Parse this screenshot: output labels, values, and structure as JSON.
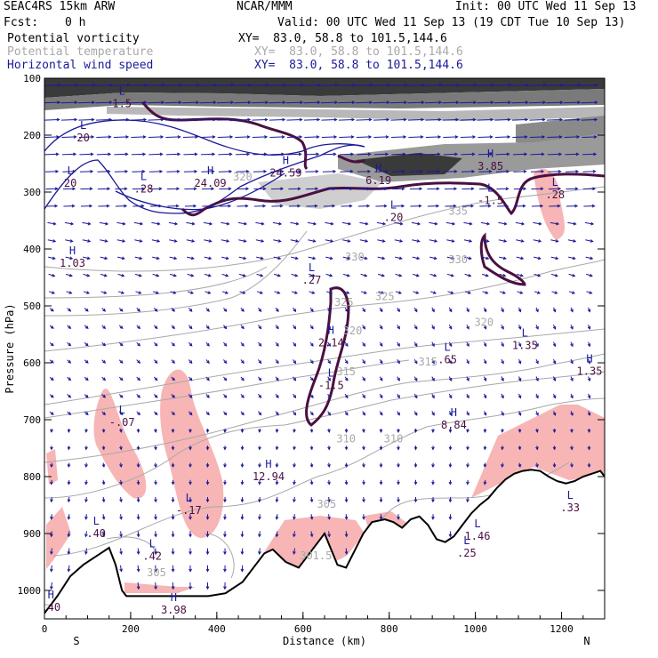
{
  "header": {
    "model": "SEAC4RS 15km ARW",
    "org": "NCAR/MMM",
    "init": "Init: 00 UTC Wed 11 Sep 13",
    "fcst_label": "Fcst:",
    "fcst_value": "0 h",
    "valid": "Valid: 00 UTC Wed 11 Sep 13 (19 CDT Tue 10 Sep 13)",
    "fields": [
      {
        "name": "Potential vorticity",
        "xy": "XY=  83.0, 58.8 to 101.5,144.6",
        "color": "#000000"
      },
      {
        "name": "Potential temperature",
        "xy": "XY=  83.0, 58.8 to 101.5,144.6",
        "color": "#a8a8a8"
      },
      {
        "name": "Horizontal wind speed",
        "xy": "XY=  83.0, 58.8 to 101.5,144.6",
        "color": "#1a1a9a"
      }
    ]
  },
  "chart_data": {
    "type": "cross-section",
    "xlabel": "Distance (km)",
    "ylabel": "Pressure (hPa)",
    "xlim": [
      0,
      1300
    ],
    "ylim": [
      1050,
      100
    ],
    "xticks": [
      "0",
      "200",
      "400",
      "600",
      "800",
      "1000",
      "1200"
    ],
    "yticks": [
      "100",
      "200",
      "300",
      "400",
      "500",
      "600",
      "700",
      "800",
      "900",
      "1000"
    ],
    "endpoints": {
      "left": "S",
      "right": "N"
    },
    "colors": {
      "pv_contour": "#4a1040",
      "theta": "#a8a8a8",
      "wind": "#1a1a9a",
      "shading": "#f7b5b5",
      "terrain": "#000000"
    },
    "terrain": [
      [
        0,
        1040
      ],
      [
        30,
        1010
      ],
      [
        60,
        975
      ],
      [
        90,
        955
      ],
      [
        120,
        940
      ],
      [
        150,
        925
      ],
      [
        165,
        955
      ],
      [
        180,
        1000
      ],
      [
        190,
        1010
      ],
      [
        380,
        1010
      ],
      [
        420,
        1005
      ],
      [
        460,
        985
      ],
      [
        490,
        955
      ],
      [
        510,
        935
      ],
      [
        530,
        928
      ],
      [
        560,
        950
      ],
      [
        590,
        960
      ],
      [
        620,
        930
      ],
      [
        650,
        900
      ],
      [
        680,
        955
      ],
      [
        700,
        960
      ],
      [
        720,
        930
      ],
      [
        740,
        900
      ],
      [
        760,
        880
      ],
      [
        790,
        875
      ],
      [
        810,
        880
      ],
      [
        830,
        890
      ],
      [
        850,
        875
      ],
      [
        870,
        870
      ],
      [
        890,
        885
      ],
      [
        910,
        910
      ],
      [
        930,
        915
      ],
      [
        950,
        905
      ],
      [
        970,
        885
      ],
      [
        990,
        865
      ],
      [
        1010,
        850
      ],
      [
        1030,
        838
      ],
      [
        1050,
        820
      ],
      [
        1070,
        805
      ],
      [
        1090,
        795
      ],
      [
        1110,
        790
      ],
      [
        1130,
        788
      ],
      [
        1150,
        790
      ],
      [
        1170,
        800
      ],
      [
        1190,
        808
      ],
      [
        1210,
        812
      ],
      [
        1230,
        808
      ],
      [
        1250,
        800
      ],
      [
        1270,
        795
      ],
      [
        1290,
        790
      ],
      [
        1300,
        800
      ]
    ],
    "pv_highs_lows": [
      {
        "type": "L",
        "value": "1.5",
        "x": 180,
        "p": 140
      },
      {
        "type": "L",
        "value": "20",
        "x": 90,
        "p": 200
      },
      {
        "type": "L",
        "value": "20",
        "x": 60,
        "p": 280
      },
      {
        "type": "L",
        "value": ".28",
        "x": 230,
        "p": 290
      },
      {
        "type": "H",
        "value": "24.09",
        "x": 385,
        "p": 280
      },
      {
        "type": "H",
        "value": "24.59",
        "x": 560,
        "p": 262
      },
      {
        "type": "H",
        "value": "6.19",
        "x": 775,
        "p": 275
      },
      {
        "type": "H",
        "value": "3.85",
        "x": 1035,
        "p": 250
      },
      {
        "type": "L",
        "value": ".28",
        "x": 1185,
        "p": 300
      },
      {
        "type": "L",
        "value": ".20",
        "x": 810,
        "p": 340
      },
      {
        "type": "L",
        "value": "-1.5",
        "x": 1035,
        "p": 310
      },
      {
        "type": "H",
        "value": "1.03",
        "x": 65,
        "p": 420
      },
      {
        "type": "L",
        "value": ".27",
        "x": 620,
        "p": 450
      },
      {
        "type": "H",
        "value": "2.14",
        "x": 665,
        "p": 560
      },
      {
        "type": "L",
        "value": "-1.5",
        "x": 665,
        "p": 635
      },
      {
        "type": "L",
        ".65": ".65",
        "value": ".65",
        "x": 935,
        "p": 590
      },
      {
        "type": "L",
        "value": "1.35",
        "x": 1115,
        "p": 565
      },
      {
        "type": "H",
        "value": "1.35",
        "x": 1265,
        "p": 610
      },
      {
        "type": "L",
        "value": "-.07",
        "x": 180,
        "p": 700
      },
      {
        "type": "H",
        "value": "8.84",
        "x": 950,
        "p": 705
      },
      {
        "type": "H",
        "value": "12.94",
        "x": 520,
        "p": 795
      },
      {
        "type": "L",
        "value": "-.17",
        "x": 335,
        "p": 855
      },
      {
        "type": "L",
        "value": ".40",
        "x": 120,
        "p": 895
      },
      {
        "type": "L",
        "value": ".42",
        "x": 250,
        "p": 935
      },
      {
        "type": "L",
        "value": "1.46",
        "x": 1005,
        "p": 900
      },
      {
        "type": "L",
        "value": ".25",
        "x": 980,
        "p": 930
      },
      {
        "type": "L",
        "value": ".33",
        "x": 1220,
        "p": 850
      },
      {
        "type": "H",
        "value": ".40",
        "x": 15,
        "p": 1025
      },
      {
        "type": "H",
        "value": "3.98",
        "x": 300,
        "p": 1030
      }
    ],
    "theta_labels": [
      {
        "value": "320",
        "x": 460,
        "p": 280
      },
      {
        "value": "335",
        "x": 960,
        "p": 340
      },
      {
        "value": "330",
        "x": 720,
        "p": 420
      },
      {
        "value": "330",
        "x": 960,
        "p": 425
      },
      {
        "value": "325",
        "x": 695,
        "p": 500
      },
      {
        "value": "325",
        "x": 790,
        "p": 490
      },
      {
        "value": "320",
        "x": 715,
        "p": 550
      },
      {
        "value": "320",
        "x": 1020,
        "p": 535
      },
      {
        "value": "315",
        "x": 700,
        "p": 622
      },
      {
        "value": "315",
        "x": 890,
        "p": 605
      },
      {
        "value": "310",
        "x": 700,
        "p": 740
      },
      {
        "value": "310",
        "x": 810,
        "p": 740
      },
      {
        "value": "305",
        "x": 655,
        "p": 855
      },
      {
        "value": "305",
        "x": 260,
        "p": 975
      },
      {
        "value": "301.5",
        "x": 630,
        "p": 945
      }
    ]
  }
}
